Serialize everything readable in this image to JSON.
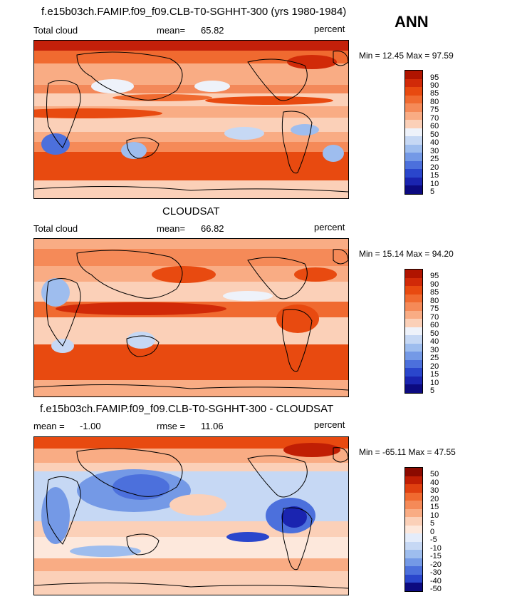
{
  "season": "ANN",
  "panels": [
    {
      "title": "f.e15b03ch.FAMIP.f09_f09.CLB-T0-SGHHT-300 (yrs 1980-1984)",
      "left_label": "Total cloud",
      "stat_label": "mean=",
      "stat_value": "65.82",
      "units": "percent",
      "minmax": "Min =  12.45 Max =  97.59",
      "colorbar_labels": [
        "95",
        "90",
        "85",
        "80",
        "75",
        "70",
        "60",
        "50",
        "40",
        "30",
        "25",
        "20",
        "15",
        "10",
        "5"
      ],
      "colors": [
        "#b01400",
        "#d12a08",
        "#e84a10",
        "#f06a30",
        "#f58a58",
        "#f9ac84",
        "#fbd0b8",
        "#eef2fa",
        "#c6d8f4",
        "#9ebdee",
        "#7499e6",
        "#4c70dc",
        "#2a46cc",
        "#1a24b0",
        "#0c0a80"
      ]
    },
    {
      "title": "CLOUDSAT",
      "left_label": "Total cloud",
      "stat_label": "mean=",
      "stat_value": "66.82",
      "units": "percent",
      "minmax": "Min =  15.14 Max =  94.20",
      "colorbar_labels": [
        "95",
        "90",
        "85",
        "80",
        "75",
        "70",
        "60",
        "50",
        "40",
        "30",
        "25",
        "20",
        "15",
        "10",
        "5"
      ],
      "colors": [
        "#b01400",
        "#d12a08",
        "#e84a10",
        "#f06a30",
        "#f58a58",
        "#f9ac84",
        "#fbd0b8",
        "#eef2fa",
        "#c6d8f4",
        "#9ebdee",
        "#7499e6",
        "#4c70dc",
        "#2a46cc",
        "#1a24b0",
        "#0c0a80"
      ]
    },
    {
      "title": "f.e15b03ch.FAMIP.f09_f09.CLB-T0-SGHHT-300 - CLOUDSAT",
      "left_label": "mean =",
      "left_value": "-1.00",
      "stat_label": "rmse =",
      "stat_value": "11.06",
      "units": "percent",
      "minmax": "Min = -65.11 Max =  47.55",
      "colorbar_labels": [
        "50",
        "40",
        "30",
        "20",
        "15",
        "10",
        "5",
        "0",
        "-5",
        "-10",
        "-15",
        "-20",
        "-30",
        "-40",
        "-50"
      ],
      "colors": [
        "#8c0a00",
        "#c01e04",
        "#e04010",
        "#f06a30",
        "#f58a58",
        "#f9ac84",
        "#fbd0b8",
        "#fde8dc",
        "#e4ecfa",
        "#c6d8f4",
        "#9ebdee",
        "#7499e6",
        "#4c70dc",
        "#2a46cc",
        "#0c0a80"
      ]
    }
  ]
}
